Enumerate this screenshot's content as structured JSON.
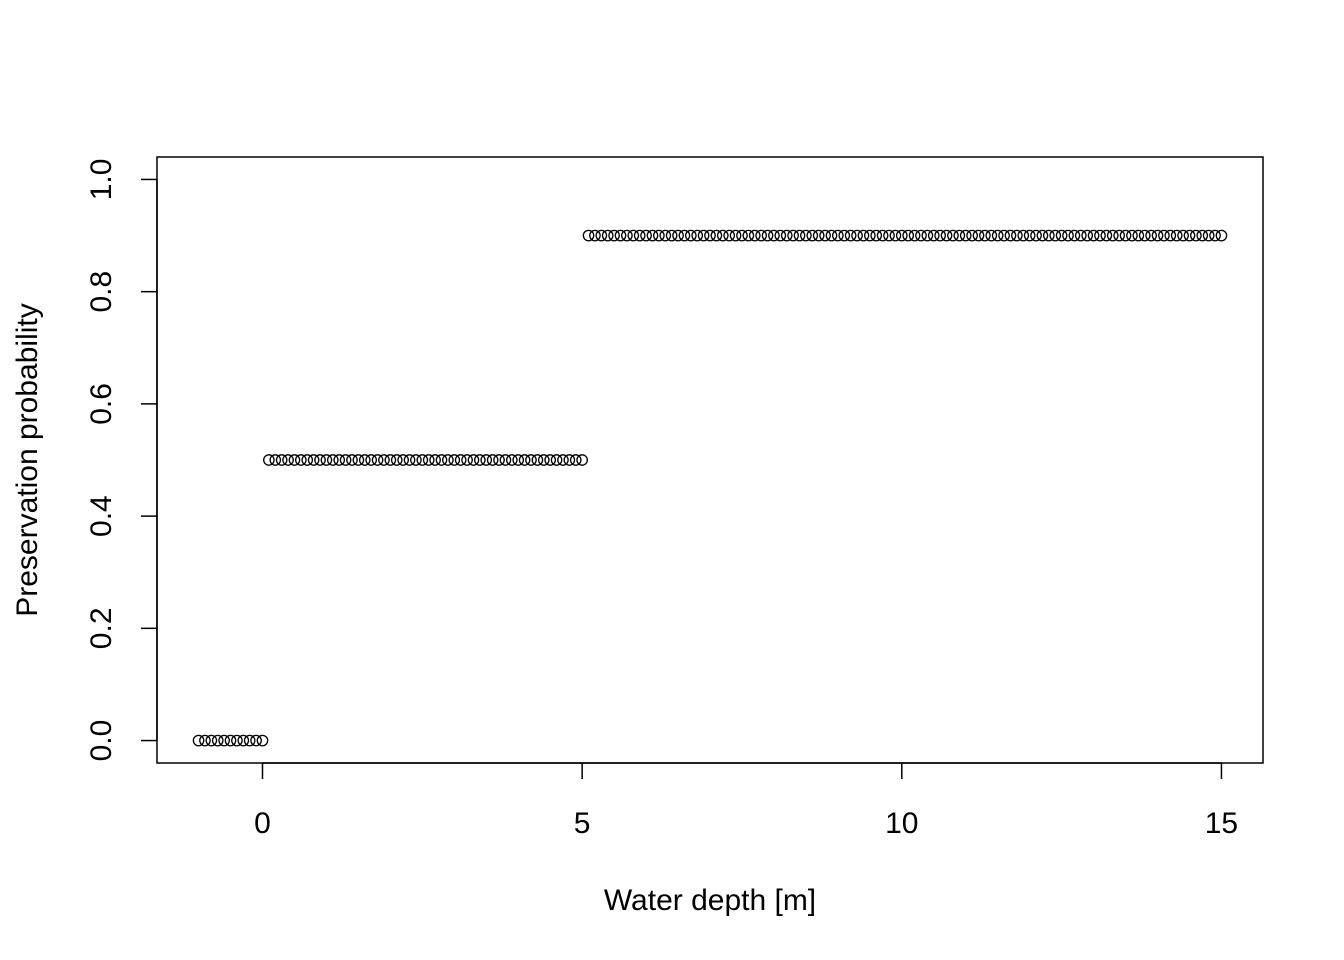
{
  "chart_data": {
    "type": "scatter",
    "title": "",
    "xlabel": "Water depth [m]",
    "ylabel": "Preservation probability",
    "xlim": [
      -1.65,
      15.65
    ],
    "ylim": [
      -0.04,
      1.04
    ],
    "x_ticks": [
      0,
      5,
      10,
      15
    ],
    "x_tick_labels": [
      "0",
      "5",
      "10",
      "15"
    ],
    "y_ticks": [
      0,
      0.2,
      0.4,
      0.6,
      0.8,
      1.0
    ],
    "y_tick_labels": [
      "0.0",
      "0.2",
      "0.4",
      "0.6",
      "0.8",
      "1.0"
    ],
    "grid": false,
    "marker": "open-circle",
    "series": [
      {
        "segments": [
          {
            "x_from": -1.0,
            "x_to": 0.0,
            "step": 0.1,
            "y": 0.0
          },
          {
            "x_from": 0.1,
            "x_to": 5.0,
            "step": 0.1,
            "y": 0.5
          },
          {
            "x_from": 5.1,
            "x_to": 15.0,
            "step": 0.1,
            "y": 0.9
          }
        ]
      }
    ]
  }
}
